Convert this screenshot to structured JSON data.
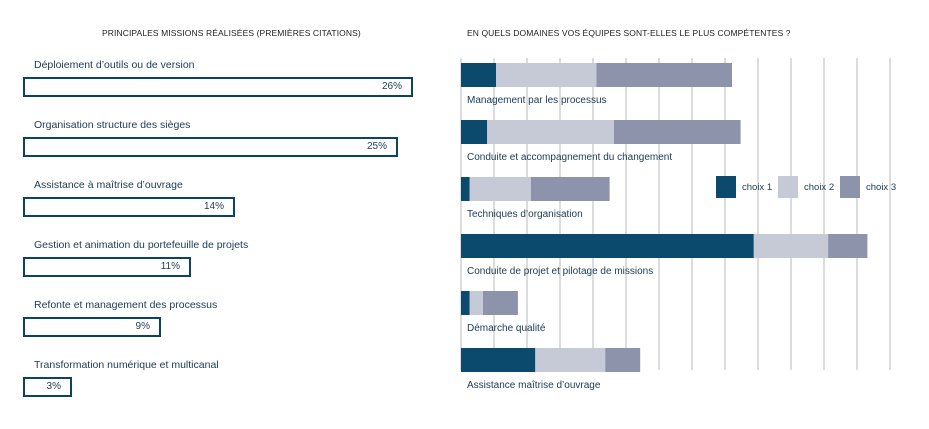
{
  "colors": {
    "choix1": "#0b4a6c",
    "choix2": "#c6c9d6",
    "choix3": "#8d93ab",
    "box_border": "#0c4262",
    "grid": "#b9b9b9"
  },
  "chart_data": [
    {
      "type": "bar",
      "title": "PRINCIPALES MISSIONS RÉALISÉES (PREMIÈRES CITATIONS)",
      "categories": [
        "Déploiement d’outils ou de version",
        "Organisation structure des sièges",
        "Assistance à maîtrise d’ouvrage",
        "Gestion et animation du portefeuille de projets",
        "Refonte et management des processus",
        "Transformation numérique et multicanal"
      ],
      "values": [
        26,
        25,
        14,
        11,
        9,
        3
      ],
      "value_labels": [
        "26%",
        "25%",
        "14%",
        "11%",
        "9%",
        "3%"
      ],
      "unit": "%"
    },
    {
      "type": "bar",
      "stacked": true,
      "orientation": "horizontal",
      "title": "EN QUELS DOMAINES VOS ÉQUIPES SONT-ELLES LE PLUS COMPÉTENTES ?",
      "categories": [
        "Management par les processus",
        "Conduite et accompagnement du changement",
        "Techniques d’organisation",
        "Conduite de projet et  pilotage de missions",
        "Démarche qualité",
        "Assistance maîtrise d’ouvrage"
      ],
      "series": [
        {
          "name": "choix 1",
          "values": [
            8,
            6,
            2,
            67,
            2,
            17
          ]
        },
        {
          "name": "choix 2",
          "values": [
            23,
            29,
            14,
            17,
            3,
            16
          ]
        },
        {
          "name": "choix 3",
          "values": [
            31,
            29,
            18,
            9,
            8,
            8
          ]
        }
      ],
      "xlim": [
        0,
        100
      ],
      "grid": true,
      "legend_position": "right"
    }
  ]
}
